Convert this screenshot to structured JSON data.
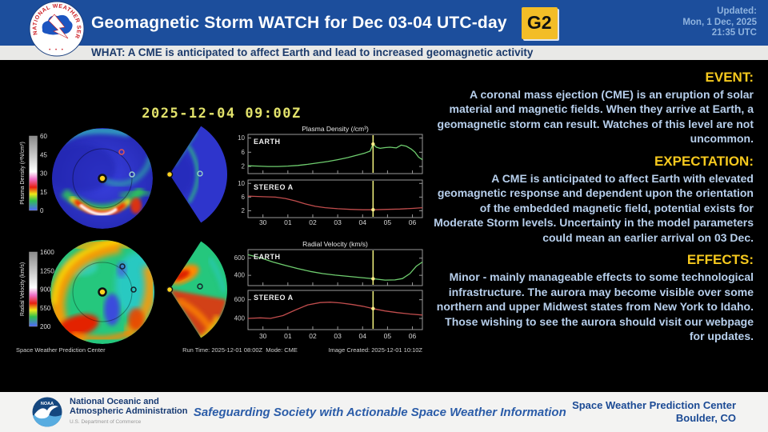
{
  "header": {
    "title": "Geomagnetic Storm WATCH for Dec 03-04 UTC-day",
    "badge": "G2",
    "updated_label": "Updated:",
    "updated_date": "Mon, 1 Dec, 2025",
    "updated_time": "21:35 UTC",
    "logo_ring_text": "NATIONAL WEATHER SERVICE",
    "logo_stars": "• • •"
  },
  "what_bar": {
    "text": "WHAT: A CME is anticipated to affect Earth and lead to increased geomagnetic activity"
  },
  "model": {
    "timestamp": "2025-12-04 09:00Z",
    "density_colorbar": {
      "label": "Plasma Density (r²N/cm³)",
      "ticks": [
        "60",
        "45",
        "30",
        "15",
        "0"
      ]
    },
    "velocity_colorbar": {
      "label": "Radial Velocity (km/s)",
      "ticks": [
        "1600",
        "1250",
        "900",
        "550",
        "200"
      ]
    },
    "caption_left": "Space Weather Prediction Center",
    "caption_center": "Run Time: 2025-12-01 08:00Z  Mode: CME",
    "caption_right": "Image Created: 2025-12-01 10:10Z"
  },
  "sections": [
    {
      "heading": "EVENT:",
      "body": "A coronal mass ejection (CME) is an eruption of solar material and magnetic fields. When they arrive at Earth, a geomagnetic storm can result. Watches of this level are not uncommon."
    },
    {
      "heading": "EXPECTATION:",
      "body": "A CME is anticipated to affect Earth with elevated geomagnetic response and dependent upon the orientation of the embedded magnetic field, potential exists for Moderate Storm levels. Uncertainty in the model parameters could mean an earlier arrival on 03 Dec."
    },
    {
      "heading": "EFFECTS:",
      "body": "Minor - mainly manageable effects to some technological infrastructure. The aurora may become visible over some northern and upper Midwest states from New York to Idaho. Those wishing to see the aurora should visit our webpage for updates."
    }
  ],
  "footer": {
    "noaa_logo_text": "NOAA",
    "agency_line1": "National Oceanic and",
    "agency_line2": "Atmospheric Administration",
    "agency_line3": "U.S. Department of Commerce",
    "tagline": "Safeguarding Society with Actionable Space Weather Information",
    "org_line1": "Space Weather Prediction Center",
    "org_line2": "Boulder, CO"
  },
  "colors": {
    "header_bg": "#1c4e9c",
    "badge_bg": "#f3bd27",
    "heading_yellow": "#f6c91e",
    "body_blue": "#b7cfec",
    "earth_series": "#6fce6f",
    "stereo_series": "#c14d4d",
    "marker_yellow": "#e9e97a"
  },
  "chart_data": [
    {
      "type": "line",
      "title": "Plasma Density (/cm³)",
      "x_range": [
        29.4,
        36.4
      ],
      "x_tick_values": [
        30,
        31,
        32,
        33,
        34,
        35,
        36
      ],
      "x_tick_labels": [
        "30",
        "01",
        "02",
        "03",
        "04",
        "05",
        "06"
      ],
      "marker_x": 34.42,
      "legend_position": "panel-label",
      "grid": false,
      "panels": [
        {
          "name": "EARTH",
          "color": "#6fce6f",
          "ylim": [
            0,
            11
          ],
          "yticks": [
            2,
            6,
            10
          ],
          "x": [
            29.4,
            29.8,
            30.2,
            30.6,
            31.0,
            31.4,
            31.8,
            32.2,
            32.6,
            33.0,
            33.4,
            33.8,
            34.1,
            34.3,
            34.42,
            34.55,
            34.7,
            34.9,
            35.1,
            35.35,
            35.55,
            35.75,
            35.95,
            36.1,
            36.25,
            36.4
          ],
          "y": [
            2.2,
            2.1,
            2.0,
            2.0,
            2.1,
            2.3,
            2.6,
            3.0,
            3.4,
            3.9,
            4.5,
            5.2,
            5.8,
            6.3,
            8.3,
            7.4,
            7.1,
            7.3,
            7.4,
            7.2,
            8.0,
            7.7,
            6.9,
            6.0,
            4.6,
            3.9
          ]
        },
        {
          "name": "STEREO A",
          "color": "#c14d4d",
          "ylim": [
            0,
            11
          ],
          "yticks": [
            2,
            6,
            10
          ],
          "x": [
            29.4,
            30.0,
            30.5,
            30.9,
            31.3,
            31.7,
            32.1,
            32.5,
            33.0,
            33.5,
            34.0,
            34.42,
            35.0,
            35.5,
            36.0,
            36.4
          ],
          "y": [
            6.3,
            6.1,
            6.0,
            5.6,
            4.9,
            4.0,
            3.3,
            2.9,
            2.6,
            2.4,
            2.3,
            2.3,
            2.4,
            2.5,
            2.7,
            2.9
          ]
        }
      ]
    },
    {
      "type": "line",
      "title": "Radial Velocity (km/s)",
      "x_range": [
        29.4,
        36.4
      ],
      "x_tick_values": [
        30,
        31,
        32,
        33,
        34,
        35,
        36
      ],
      "x_tick_labels": [
        "30",
        "01",
        "02",
        "03",
        "04",
        "05",
        "06"
      ],
      "marker_x": 34.42,
      "legend_position": "panel-label",
      "grid": false,
      "panels": [
        {
          "name": "EARTH",
          "color": "#6fce6f",
          "ylim": [
            280,
            700
          ],
          "yticks": [
            400,
            600
          ],
          "x": [
            29.4,
            29.9,
            30.4,
            30.9,
            31.4,
            31.9,
            32.4,
            32.9,
            33.4,
            33.9,
            34.42,
            34.9,
            35.3,
            35.6,
            35.9,
            36.15,
            36.4
          ],
          "y": [
            640,
            605,
            555,
            515,
            478,
            445,
            420,
            402,
            388,
            374,
            360,
            344,
            346,
            362,
            420,
            505,
            555
          ]
        },
        {
          "name": "STEREO A",
          "color": "#c14d4d",
          "ylim": [
            280,
            700
          ],
          "yticks": [
            400,
            600
          ],
          "x": [
            29.4,
            29.9,
            30.3,
            30.8,
            31.3,
            31.8,
            32.3,
            32.7,
            33.1,
            33.6,
            34.0,
            34.42,
            34.9,
            35.4,
            35.9,
            36.4
          ],
          "y": [
            400,
            406,
            400,
            430,
            490,
            545,
            570,
            574,
            566,
            548,
            530,
            505,
            480,
            462,
            447,
            436
          ]
        }
      ]
    }
  ]
}
